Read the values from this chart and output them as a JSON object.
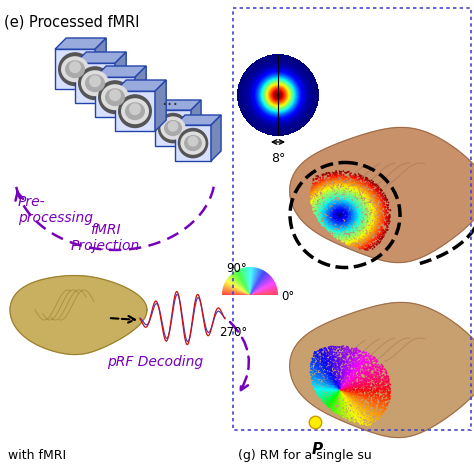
{
  "title_e": "(e) Processed fMRI",
  "label_preprocessing": "Pre-\nprocessing",
  "label_fmri": "fMRI\nProjection",
  "label_prf": "pRF Decoding",
  "label_8deg": "8°",
  "label_90": "90°",
  "label_0": "0°",
  "label_270": "270°",
  "label_P": "P",
  "label_bottom_left": "with fMRI",
  "label_bottom_right": "(g) RM for a single su",
  "dotted_box_color": "#4444cc",
  "arrow_color": "#7700bb",
  "brain_top_color": "#c8916a",
  "brain_bottom_color": "#c8a070",
  "brain_left_color": "#c8b060",
  "fmri_cube_front": "#d8e0ff",
  "fmri_cube_top": "#99aadd",
  "fmri_cube_right": "#7788bb",
  "fmri_cube_edge": "#2244aa",
  "signal_blue": "#4444cc",
  "signal_red": "#cc1111"
}
